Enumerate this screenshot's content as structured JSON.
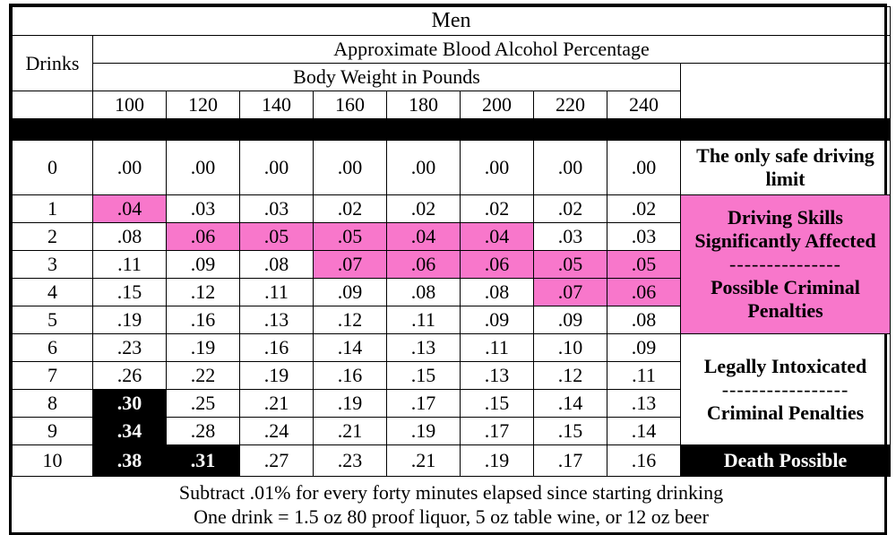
{
  "title": "Men",
  "subtitle": "Approximate Blood Alcohol Percentage",
  "drinks_label": "Drinks",
  "body_weight_label": "Body Weight in Pounds",
  "weights": [
    "100",
    "120",
    "140",
    "160",
    "180",
    "200",
    "220",
    "240"
  ],
  "colors": {
    "pink": "#f877cb",
    "black": "#000000",
    "white": "#ffffff"
  },
  "rows": [
    {
      "d": "0",
      "v": [
        ".00",
        ".00",
        ".00",
        ".00",
        ".00",
        ".00",
        ".00",
        ".00"
      ],
      "s": [
        "",
        "",
        "",
        "",
        "",
        "",
        "",
        ""
      ]
    },
    {
      "d": "1",
      "v": [
        ".04",
        ".03",
        ".03",
        ".02",
        ".02",
        ".02",
        ".02",
        ".02"
      ],
      "s": [
        "pink",
        "",
        "",
        "",
        "",
        "",
        "",
        ""
      ]
    },
    {
      "d": "2",
      "v": [
        ".08",
        ".06",
        ".05",
        ".05",
        ".04",
        ".04",
        ".03",
        ".03"
      ],
      "s": [
        "",
        "pink",
        "pink",
        "pink",
        "pink",
        "pink",
        "",
        ""
      ]
    },
    {
      "d": "3",
      "v": [
        ".11",
        ".09",
        ".08",
        ".07",
        ".06",
        ".06",
        ".05",
        ".05"
      ],
      "s": [
        "",
        "",
        "",
        "pink",
        "pink",
        "pink",
        "pink",
        "pink"
      ]
    },
    {
      "d": "4",
      "v": [
        ".15",
        ".12",
        ".11",
        ".09",
        ".08",
        ".08",
        ".07",
        ".06"
      ],
      "s": [
        "",
        "",
        "",
        "",
        "",
        "",
        "pink",
        "pink"
      ]
    },
    {
      "d": "5",
      "v": [
        ".19",
        ".16",
        ".13",
        ".12",
        ".11",
        ".09",
        ".09",
        ".08"
      ],
      "s": [
        "",
        "",
        "",
        "",
        "",
        "",
        "",
        ""
      ]
    },
    {
      "d": "6",
      "v": [
        ".23",
        ".19",
        ".16",
        ".14",
        ".13",
        ".11",
        ".10",
        ".09"
      ],
      "s": [
        "",
        "",
        "",
        "",
        "",
        "",
        "",
        ""
      ]
    },
    {
      "d": "7",
      "v": [
        ".26",
        ".22",
        ".19",
        ".16",
        ".15",
        ".13",
        ".12",
        ".11"
      ],
      "s": [
        "",
        "",
        "",
        "",
        "",
        "",
        "",
        ""
      ]
    },
    {
      "d": "8",
      "v": [
        ".30",
        ".25",
        ".21",
        ".19",
        ".17",
        ".15",
        ".14",
        ".13"
      ],
      "s": [
        "blackcell",
        "",
        "",
        "",
        "",
        "",
        "",
        ""
      ]
    },
    {
      "d": "9",
      "v": [
        ".34",
        ".28",
        ".24",
        ".21",
        ".19",
        ".17",
        ".15",
        ".14"
      ],
      "s": [
        "blackcell",
        "",
        "",
        "",
        "",
        "",
        "",
        ""
      ]
    },
    {
      "d": "10",
      "v": [
        ".38",
        ".31",
        ".27",
        ".23",
        ".21",
        ".19",
        ".17",
        ".16"
      ],
      "s": [
        "blackcell",
        "blackcell",
        "",
        "",
        "",
        "",
        "",
        ""
      ]
    }
  ],
  "desc": {
    "safe_line1": "The only safe driving",
    "safe_line2": "limit",
    "affected_line1": "Driving Skills",
    "affected_line2": "Significantly Affected",
    "affected_dash": "---------------",
    "affected_line3": "Possible Criminal",
    "affected_line4": "Penalties",
    "legal_line1": "Legally Intoxicated",
    "legal_dash": "-----------------",
    "legal_line2": "Criminal Penalties",
    "death": "Death Possible"
  },
  "footer1": "Subtract .01% for every forty minutes elapsed since starting drinking",
  "footer2": "One drink = 1.5 oz 80 proof liquor, 5 oz table wine, or 12 oz beer"
}
